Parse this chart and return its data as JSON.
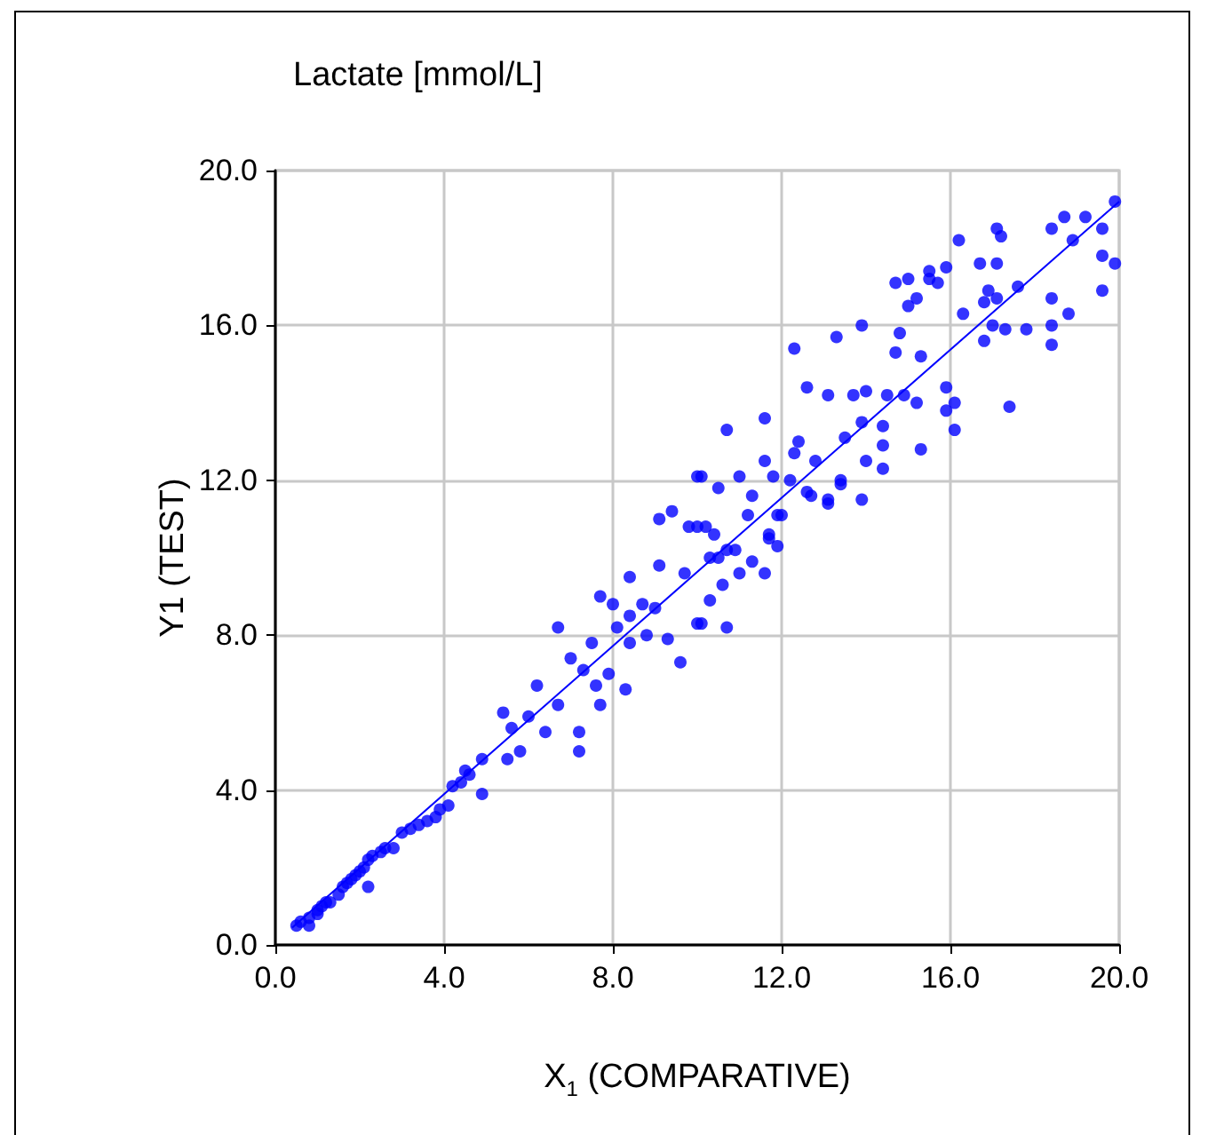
{
  "chart_data": {
    "type": "scatter",
    "title": "Lactate [mmol/L]",
    "xlabel": "X$_{1}$ (COMPARATIVE)",
    "ylabel": "Y1 (TEST)",
    "xlim": [
      0,
      20
    ],
    "ylim": [
      0,
      20
    ],
    "xticks": [
      {
        "value": 0,
        "label": "0.0"
      },
      {
        "value": 4,
        "label": "4.0"
      },
      {
        "value": 8,
        "label": "8.0"
      },
      {
        "value": 12,
        "label": "12.0"
      },
      {
        "value": 16,
        "label": "16.0"
      },
      {
        "value": 20,
        "label": "20.0"
      }
    ],
    "yticks": [
      {
        "value": 0,
        "label": "0.0"
      },
      {
        "value": 4,
        "label": "4.0"
      },
      {
        "value": 8,
        "label": "8.0"
      },
      {
        "value": 12,
        "label": "12.0"
      },
      {
        "value": 16,
        "label": "16.0"
      },
      {
        "value": 20,
        "label": "20.0"
      }
    ],
    "grid": true,
    "marker": "circle",
    "series": [
      {
        "color": "#0000ff",
        "x": [
          19.9,
          19.6,
          19.2,
          18.7,
          18.4,
          19.9,
          19.6,
          19.6,
          18.9,
          18.4,
          18.8,
          18.4,
          18.4,
          17.8,
          17.4,
          17.3,
          17.0,
          16.8,
          17.1,
          17.2,
          17.1,
          16.7,
          17.6,
          16.9,
          16.8,
          17.1,
          16.3,
          16.2,
          15.9,
          15.5,
          15.7,
          15.5,
          15.0,
          14.7,
          15.2,
          15.0,
          14.8,
          14.7,
          15.3,
          13.9,
          13.3,
          12.3,
          12.6,
          13.1,
          13.7,
          14.0,
          14.5,
          14.9,
          15.2,
          15.9,
          15.9,
          16.1,
          16.1,
          15.3,
          14.4,
          14.4,
          14.4,
          14.0,
          13.9,
          13.5,
          13.4,
          13.9,
          13.1,
          12.6,
          12.8,
          12.4,
          12.3,
          12.2,
          11.6,
          11.6,
          11.8,
          10.7,
          10.1,
          10.5,
          11.0,
          11.3,
          12.0,
          11.7,
          10.7,
          10.2,
          10.1,
          10.7,
          10.3,
          10.6,
          11.0,
          11.3,
          11.6,
          10.9,
          11.9,
          11.7,
          11.9,
          12.7,
          13.1,
          13.4,
          10.0,
          10.4,
          11.2,
          10.3,
          10.5,
          10.0,
          9.1,
          9.4,
          9.8,
          10.0,
          9.6,
          8.3,
          7.7,
          7.2,
          7.2,
          6.7,
          7.7,
          8.0,
          8.4,
          9.1,
          9.7,
          9.3,
          8.8,
          8.4,
          7.9,
          7.6,
          7.3,
          7.0,
          7.5,
          8.4,
          8.7,
          9.0,
          8.1,
          6.2,
          6.7,
          6.4,
          6.0,
          5.4,
          5.6,
          5.8,
          5.5,
          4.9,
          4.9,
          4.5,
          4.2,
          4.1,
          3.8,
          3.4,
          3.0,
          2.8,
          2.5,
          2.2,
          2.2,
          2.0,
          1.8,
          1.6,
          1.3,
          1.1,
          1.0,
          0.8,
          1.5,
          0.8,
          1.0,
          1.9,
          2.3,
          2.6,
          3.6,
          3.9,
          4.4,
          4.6,
          0.6,
          0.5,
          1.2,
          1.7,
          2.1,
          3.2
        ],
        "values": [
          19.2,
          18.5,
          18.8,
          18.8,
          18.5,
          17.6,
          17.8,
          16.9,
          18.2,
          16.7,
          16.3,
          16.0,
          15.5,
          15.9,
          13.9,
          15.9,
          16.0,
          15.6,
          18.5,
          18.3,
          17.6,
          17.6,
          17.0,
          16.9,
          16.6,
          16.7,
          16.3,
          18.2,
          17.5,
          17.4,
          17.1,
          17.2,
          17.2,
          17.1,
          16.7,
          16.5,
          15.8,
          15.3,
          15.2,
          16.0,
          15.7,
          15.4,
          14.4,
          14.2,
          14.2,
          14.3,
          14.2,
          14.2,
          14.0,
          14.4,
          13.8,
          14.0,
          13.3,
          12.8,
          13.4,
          12.9,
          12.3,
          12.5,
          13.5,
          13.1,
          12.0,
          11.5,
          11.5,
          11.7,
          12.5,
          13.0,
          12.7,
          12.0,
          13.6,
          12.5,
          12.1,
          13.3,
          12.1,
          11.8,
          12.1,
          11.6,
          11.1,
          10.5,
          10.2,
          10.8,
          8.3,
          8.2,
          8.9,
          9.3,
          9.6,
          9.9,
          9.6,
          10.2,
          10.3,
          10.6,
          11.1,
          11.6,
          11.4,
          11.9,
          10.8,
          10.6,
          11.1,
          10.0,
          10.0,
          12.1,
          11.0,
          11.2,
          10.8,
          8.3,
          7.3,
          6.6,
          6.2,
          5.5,
          5.0,
          8.2,
          9.0,
          8.8,
          9.5,
          9.8,
          9.6,
          7.9,
          8.0,
          7.8,
          7.0,
          6.7,
          7.1,
          7.4,
          7.8,
          8.5,
          8.8,
          8.7,
          8.2,
          6.7,
          6.2,
          5.5,
          5.9,
          6.0,
          5.6,
          5.0,
          4.8,
          4.8,
          3.9,
          4.5,
          4.1,
          3.6,
          3.3,
          3.1,
          2.9,
          2.5,
          2.4,
          2.2,
          1.5,
          1.9,
          1.7,
          1.5,
          1.1,
          1.0,
          0.8,
          0.5,
          1.3,
          0.7,
          0.9,
          1.8,
          2.3,
          2.5,
          3.2,
          3.5,
          4.2,
          4.4,
          0.6,
          0.5,
          1.1,
          1.6,
          2.0,
          3.0
        ]
      },
      {
        "type": "line",
        "color": "#0000ff",
        "marker": "none",
        "x": [
          0.4,
          20
        ],
        "values": [
          0.45,
          19.2
        ]
      }
    ]
  }
}
